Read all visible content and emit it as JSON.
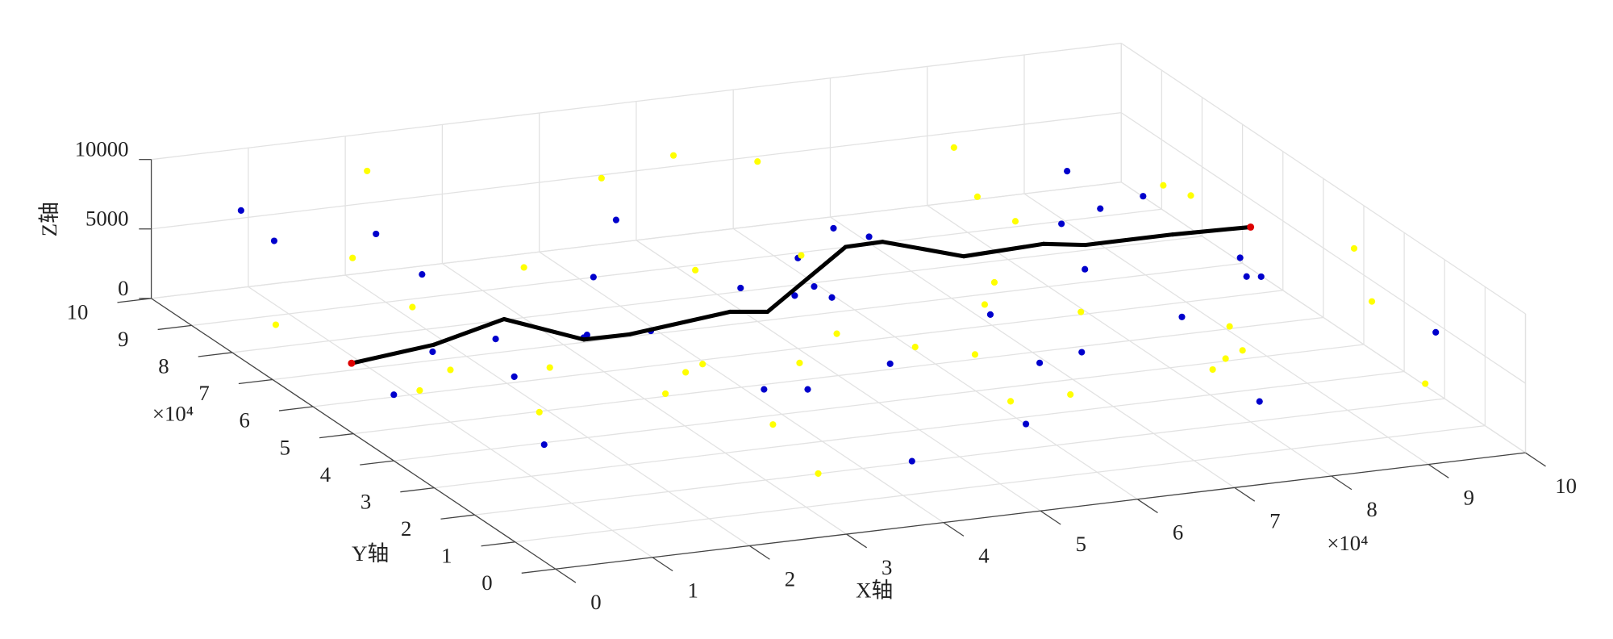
{
  "chart_data": {
    "type": "scatter3d",
    "xlabel": "X轴",
    "ylabel": "Y轴",
    "zlabel": "Z轴",
    "x_exponent_label": "×10⁴",
    "y_exponent_label": "×10⁴",
    "xlim": [
      0,
      100000
    ],
    "ylim": [
      0,
      100000
    ],
    "zlim": [
      0,
      10000
    ],
    "xticks": [
      {
        "value": 0,
        "label": "0"
      },
      {
        "value": 10000,
        "label": "1"
      },
      {
        "value": 20000,
        "label": "2"
      },
      {
        "value": 30000,
        "label": "3"
      },
      {
        "value": 40000,
        "label": "4"
      },
      {
        "value": 50000,
        "label": "5"
      },
      {
        "value": 60000,
        "label": "6"
      },
      {
        "value": 70000,
        "label": "7"
      },
      {
        "value": 80000,
        "label": "8"
      },
      {
        "value": 90000,
        "label": "9"
      },
      {
        "value": 100000,
        "label": "10"
      }
    ],
    "yticks": [
      {
        "value": 0,
        "label": "0"
      },
      {
        "value": 10000,
        "label": "1"
      },
      {
        "value": 20000,
        "label": "2"
      },
      {
        "value": 30000,
        "label": "3"
      },
      {
        "value": 40000,
        "label": "4"
      },
      {
        "value": 50000,
        "label": "5"
      },
      {
        "value": 60000,
        "label": "6"
      },
      {
        "value": 70000,
        "label": "7"
      },
      {
        "value": 80000,
        "label": "8"
      },
      {
        "value": 90000,
        "label": "9"
      },
      {
        "value": 100000,
        "label": "10"
      }
    ],
    "zticks": [
      0,
      5000,
      10000
    ],
    "grid": true,
    "series": [
      {
        "color": "#0000cc",
        "x": [
          3000,
          8000,
          14000,
          20000,
          25000,
          31000,
          36000,
          42000,
          47000,
          53000,
          58000,
          64000,
          69000,
          75000,
          80000,
          86000,
          91000,
          97000,
          5000,
          11000,
          17000,
          23000,
          29000,
          34000,
          40000,
          45000,
          51000,
          56000,
          62000,
          67000,
          73000,
          78000,
          84000,
          89000,
          95000,
          7000,
          19000,
          38000,
          60000,
          82000
        ],
        "y": [
          85000,
          22000,
          64000,
          41000,
          93000,
          12000,
          77000,
          55000,
          30000,
          68000,
          9000,
          46000,
          88000,
          25000,
          61000,
          37000,
          73000,
          15000,
          52000,
          96000,
          33000,
          70000,
          18000,
          58000,
          81000,
          44000,
          6000,
          66000,
          29000,
          92000,
          50000,
          13000,
          75000,
          39000,
          57000,
          27000,
          90000,
          3000,
          84000,
          62000
        ],
        "z": [
          9000,
          4000,
          2000,
          7000,
          1000,
          8000,
          3000,
          6000,
          5000,
          2000,
          9000,
          4000,
          1000,
          7000,
          3000,
          8000,
          5000,
          6000,
          2000,
          4000,
          9000,
          1000,
          7000,
          3000,
          6000,
          8000,
          5000,
          2000,
          4000,
          1000,
          9000,
          3000,
          7000,
          6000,
          2000,
          8000,
          5000,
          4000,
          1000,
          7000
        ]
      },
      {
        "color": "#ffff00",
        "x": [
          6000,
          12000,
          18000,
          24000,
          28000,
          33000,
          39000,
          44000,
          49000,
          55000,
          60000,
          66000,
          71000,
          77000,
          82000,
          88000,
          93000,
          99000,
          2000,
          10000,
          15000,
          21000,
          27000,
          36000,
          41000,
          48000,
          52000,
          57000,
          63000,
          69000,
          74000,
          79000,
          85000,
          90000,
          96000,
          9000,
          30000,
          46000,
          65000,
          87000
        ],
        "y": [
          48000,
          79000,
          16000,
          59000,
          35000,
          87000,
          24000,
          71000,
          5000,
          43000,
          94000,
          31000,
          66000,
          19000,
          83000,
          54000,
          8000,
          40000,
          74000,
          28000,
          62000,
          97000,
          11000,
          50000,
          38000,
          86000,
          21000,
          76000,
          45000,
          3000,
          69000,
          91000,
          34000,
          14000,
          80000,
          57000,
          7000,
          99000,
          26000,
          42000
        ],
        "z": [
          3000,
          6000,
          8000,
          1000,
          5000,
          2000,
          9000,
          4000,
          7000,
          3000,
          6000,
          1000,
          8000,
          5000,
          2000,
          9000,
          4000,
          7000,
          3000,
          5000,
          1000,
          8000,
          6000,
          2000,
          4000,
          9000,
          7000,
          3000,
          5000,
          8000,
          1000,
          6000,
          2000,
          9000,
          4000,
          7000,
          3000,
          5000,
          8000,
          2000
        ]
      }
    ],
    "path": {
      "color": "#000000",
      "endpoint_color": "#dd0000",
      "x": [
        3600,
        13200,
        22700,
        27000,
        31700,
        43400,
        46700,
        62000,
        65900,
        71100,
        79700,
        83200,
        92200,
        100000
      ],
      "y": [
        59100,
        61800,
        67200,
        57800,
        57700,
        61000,
        59600,
        77000,
        77200,
        69600,
        70500,
        68600,
        68600,
        68000
      ],
      "z": [
        3000,
        3000,
        3000,
        3000,
        3000,
        3000,
        3000,
        3000,
        3000,
        3000,
        3000,
        3000,
        3000,
        3000
      ]
    }
  }
}
